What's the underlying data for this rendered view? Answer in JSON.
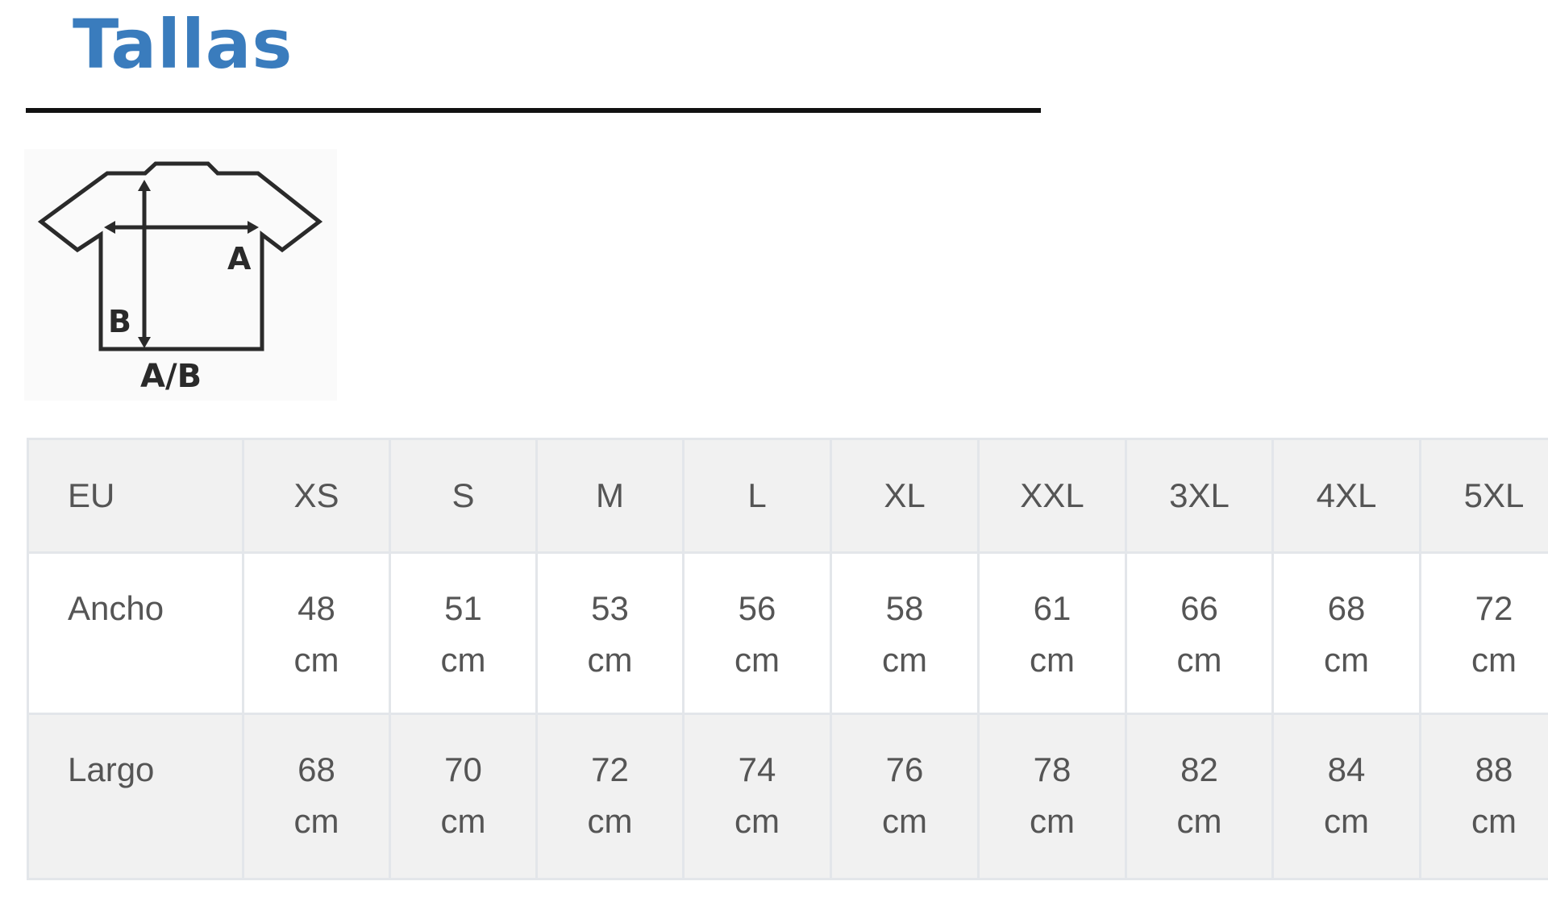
{
  "title": "Tallas",
  "diagram": {
    "label_a": "A",
    "label_b": "B",
    "caption": "A/B"
  },
  "table": {
    "header": [
      "EU",
      "XS",
      "S",
      "M",
      "L",
      "XL",
      "XXL",
      "3XL",
      "4XL",
      "5XL"
    ],
    "rows": [
      {
        "label": "Ancho",
        "unit": "cm",
        "values": [
          "48",
          "51",
          "53",
          "56",
          "58",
          "61",
          "66",
          "68",
          "72"
        ]
      },
      {
        "label": "Largo",
        "unit": "cm",
        "values": [
          "68",
          "70",
          "72",
          "74",
          "76",
          "78",
          "82",
          "84",
          "88"
        ]
      }
    ]
  },
  "colors": {
    "title": "#3a7cbd",
    "text": "#555555",
    "row_alt": "#f1f1f1",
    "border": "#e3e6ea"
  }
}
